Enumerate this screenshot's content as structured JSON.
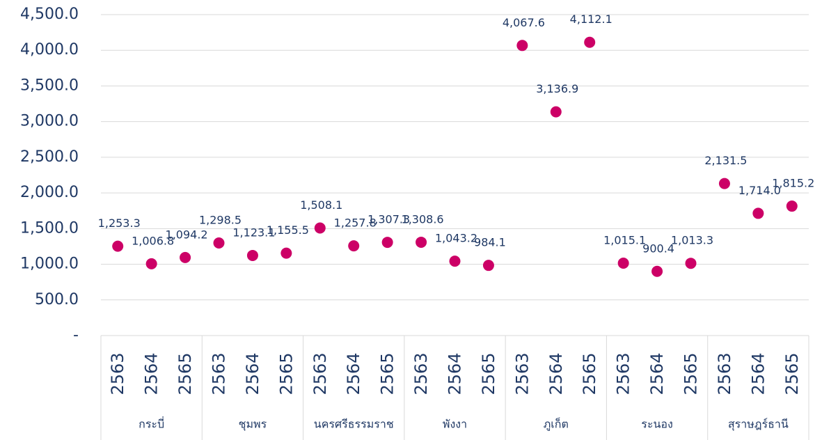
{
  "chart_data": {
    "type": "scatter",
    "groups": [
      {
        "label": "กระบี่",
        "categories": [
          "2563",
          "2564",
          "2565"
        ]
      },
      {
        "label": "ชุมพร",
        "categories": [
          "2563",
          "2564",
          "2565"
        ]
      },
      {
        "label": "นครศรีธรรมราช",
        "categories": [
          "2563",
          "2564",
          "2565"
        ]
      },
      {
        "label": "พังงา",
        "categories": [
          "2563",
          "2564",
          "2565"
        ]
      },
      {
        "label": "ภูเก็ต",
        "categories": [
          "2563",
          "2564",
          "2565"
        ]
      },
      {
        "label": "ระนอง",
        "categories": [
          "2563",
          "2564",
          "2565"
        ]
      },
      {
        "label": "สุราษฎร์ธานี",
        "categories": [
          "2563",
          "2564",
          "2565"
        ]
      }
    ],
    "values": [
      1253.3,
      1006.8,
      1094.2,
      1298.5,
      1123.1,
      1155.5,
      1508.1,
      1257.8,
      1307.3,
      1308.6,
      1043.2,
      984.1,
      4067.6,
      3136.9,
      4112.1,
      1015.1,
      900.4,
      1013.3,
      2131.5,
      1714.0,
      1815.2
    ],
    "value_labels": [
      "1,253.3",
      "1,006.8",
      "1,094.2",
      "1,298.5",
      "1,123.1",
      "1,155.5",
      "1,508.1",
      "1,257.8",
      "1,307.3",
      "1,308.6",
      "1,043.2",
      "984.1",
      "4,067.6",
      "3,136.9",
      "4,112.1",
      "1,015.1",
      "900.4",
      "1,013.3",
      "2,131.5",
      "1,714.0",
      "1,815.2"
    ],
    "color": "#cc0066",
    "ylim": [
      0,
      4500
    ],
    "yticks": [
      {
        "value": 0,
        "label": "-"
      },
      {
        "value": 500,
        "label": "500.0"
      },
      {
        "value": 1000,
        "label": "1,000.0"
      },
      {
        "value": 1500,
        "label": "1,500.0"
      },
      {
        "value": 2000,
        "label": "2,000.0"
      },
      {
        "value": 2500,
        "label": "2,500.0"
      },
      {
        "value": 3000,
        "label": "3,000.0"
      },
      {
        "value": 3500,
        "label": "3,500.0"
      },
      {
        "value": 4000,
        "label": "4,000.0"
      },
      {
        "value": 4500,
        "label": "4,500.0"
      }
    ],
    "grid": true
  }
}
